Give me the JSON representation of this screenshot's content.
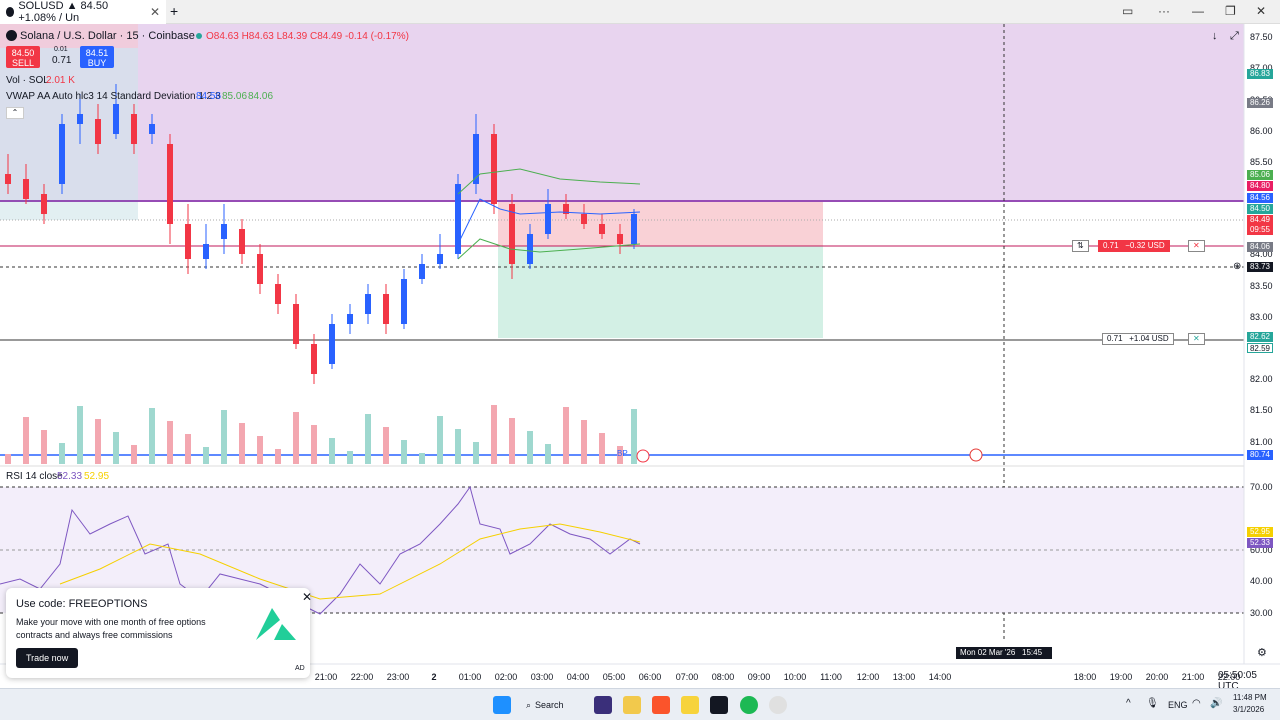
{
  "browser": {
    "tab_title": "SOLUSD ▲ 84.50 +1.08% / Un",
    "new_tab": "+",
    "tab_close": "✕"
  },
  "header": {
    "symbol_line": "Solana / U.S. Dollar · 15 · Coinbase",
    "ohlc": "O84.63 H84.63 L84.39 C84.49 -0.14 (-0.17%)",
    "sell_price": "84.50",
    "sell_label": "SELL",
    "spread_top": "0.01",
    "spread": "0.71",
    "buy_price": "84.51",
    "buy_label": "BUY",
    "vol_label": "Vol · SOL",
    "vol_value": "2.01 K",
    "vwap_label": "VWAP AA Auto hlc3 14 Standard Deviation 1 2 3",
    "vwap_v1": "84.56",
    "vwap_v2": "85.06",
    "vwap_v3": "84.06",
    "rsi_label": "RSI 14 close",
    "rsi_value": "52.33",
    "rsi_ma": "52.95"
  },
  "price_axis": [
    "87.50",
    "87.00",
    "86.50",
    "86.00",
    "85.50",
    "84.50",
    "84.00",
    "83.50",
    "83.00",
    "82.50",
    "82.00",
    "81.50",
    "81.00"
  ],
  "price_tags": [
    {
      "label": "86.83",
      "color": "#26a69a"
    },
    {
      "label": "86.26",
      "color": "#787b86"
    },
    {
      "label": "85.06",
      "color": "#4caf50"
    },
    {
      "label": "84.80",
      "color": "#e91e63"
    },
    {
      "label": "84.56",
      "color": "#2962ff"
    },
    {
      "label": "84.50",
      "color": "#26a69a"
    },
    {
      "label": "84.49",
      "color": "#f23645"
    },
    {
      "label": "09:55",
      "color": "#f23645"
    },
    {
      "label": "84.06",
      "color": "#787b86"
    },
    {
      "label": "83.73",
      "color": "#131722"
    },
    {
      "label": "82.62",
      "color": "#26a69a"
    },
    {
      "label": "82.59",
      "color": "#ffffff"
    },
    {
      "label": "80.74",
      "color": "#2962ff"
    }
  ],
  "rsi_axis": [
    "70.00",
    "60.00",
    "50.00",
    "40.00",
    "30.00"
  ],
  "rsi_tags": [
    {
      "label": "52.95",
      "color": "#f5d000"
    },
    {
      "label": "52.33",
      "color": "#7e57c2"
    }
  ],
  "time_axis": [
    "21:00",
    "22:00",
    "23:00",
    "2",
    "01:00",
    "02:00",
    "03:00",
    "04:00",
    "05:00",
    "06:00",
    "07:00",
    "08:00",
    "09:00",
    "10:00",
    "11:00",
    "12:00",
    "13:00",
    "14:00",
    "18:00",
    "19:00",
    "20:00",
    "21:00",
    "22:00"
  ],
  "crosshair_time": "Mon 02 Mar '26   15:45",
  "orders": {
    "stop": {
      "qty": "0.71",
      "pnl": "−0.32 USD"
    },
    "target": {
      "qty": "0.71",
      "pnl": "+1.04 USD"
    }
  },
  "bp_label": "BP",
  "clock": "05:50:05 UTC",
  "promo": {
    "title": "Use code: FREEOPTIONS",
    "body": "Make your move with one month of free options contracts and always free commissions",
    "button": "Trade now",
    "badge": "AD"
  },
  "taskbar": {
    "search": "Search",
    "lang": "ENG",
    "time": "11:48 PM",
    "date": "3/1/2026"
  },
  "colors": {
    "up": "#2962ff",
    "down": "#f23645",
    "rsi": "#7e57c2",
    "rsi_ma": "#f5d000"
  }
}
